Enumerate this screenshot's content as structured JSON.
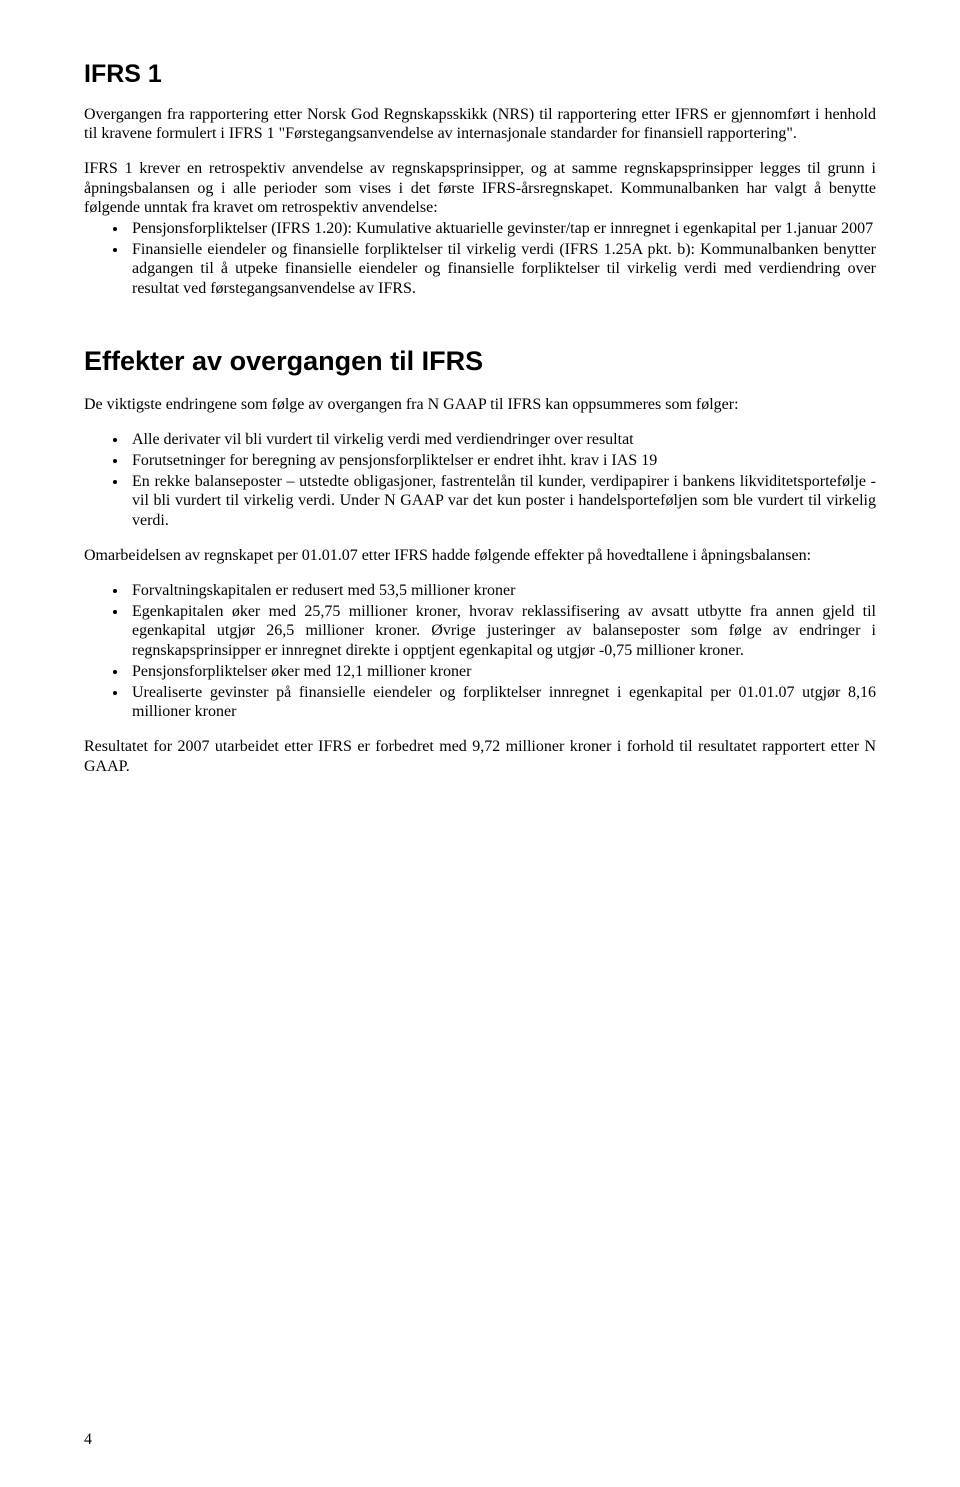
{
  "typography": {
    "body_font_family": "Times New Roman",
    "heading_font_family": "Arial",
    "body_font_size_pt": 12,
    "h1_font_size_pt": 19,
    "h2_font_size_pt": 20,
    "text_color": "#000000",
    "background_color": "#ffffff"
  },
  "section1": {
    "title": "IFRS 1",
    "para1": "Overgangen fra rapportering etter Norsk God Regnskapsskikk (NRS) til rapportering etter IFRS er gjennomført i henhold til kravene formulert i IFRS 1 \"Førstegangsanvendelse av internasjonale standarder for finansiell rapportering\".",
    "para2": "IFRS 1 krever en retrospektiv anvendelse av regnskapsprinsipper, og at samme regnskapsprinsipper legges til grunn i åpningsbalansen og i alle perioder som vises i det første IFRS-årsregnskapet. Kommunalbanken har valgt å benytte følgende unntak fra kravet om retrospektiv anvendelse:",
    "bullets": [
      "Pensjonsforpliktelser (IFRS 1.20): Kumulative aktuarielle gevinster/tap er innregnet i egenkapital per 1.januar 2007",
      "Finansielle eiendeler og finansielle forpliktelser til virkelig verdi (IFRS 1.25A pkt. b): Kommunalbanken benytter adgangen til å utpeke finansielle eiendeler og finansielle forpliktelser til virkelig verdi med verdiendring over resultat ved førstegangsanvendelse av IFRS."
    ]
  },
  "section2": {
    "title": "Effekter av overgangen til IFRS",
    "para1": "De viktigste endringene som følge av overgangen fra N GAAP til IFRS kan oppsummeres som følger:",
    "bullets1": [
      "Alle derivater vil bli vurdert til virkelig verdi med verdiendringer over resultat",
      "Forutsetninger for beregning av pensjonsforpliktelser er endret ihht. krav i IAS 19",
      "En rekke balanseposter – utstedte obligasjoner, fastrentelån til kunder, verdipapirer i bankens likviditetsportefølje - vil bli vurdert til virkelig verdi. Under N GAAP var det kun poster i handelsporteføljen som ble vurdert til virkelig verdi."
    ],
    "para2": "Omarbeidelsen av regnskapet per 01.01.07 etter IFRS hadde følgende effekter på hovedtallene i åpningsbalansen:",
    "bullets2": [
      "Forvaltningskapitalen er redusert med 53,5 millioner kroner",
      "Egenkapitalen øker med 25,75 millioner kroner, hvorav reklassifisering av avsatt utbytte fra annen gjeld til egenkapital utgjør 26,5 millioner kroner. Øvrige justeringer av balanseposter som følge av endringer i regnskapsprinsipper er innregnet direkte i opptjent egenkapital og utgjør -0,75 millioner kroner.",
      "Pensjonsforpliktelser øker med 12,1 millioner kroner",
      "Urealiserte gevinster på finansielle eiendeler og forpliktelser innregnet i egenkapital per 01.01.07 utgjør 8,16 millioner kroner"
    ],
    "para3": "Resultatet for 2007 utarbeidet etter IFRS er forbedret med 9,72 millioner kroner i forhold til resultatet rapportert etter N GAAP."
  },
  "page_number": "4"
}
